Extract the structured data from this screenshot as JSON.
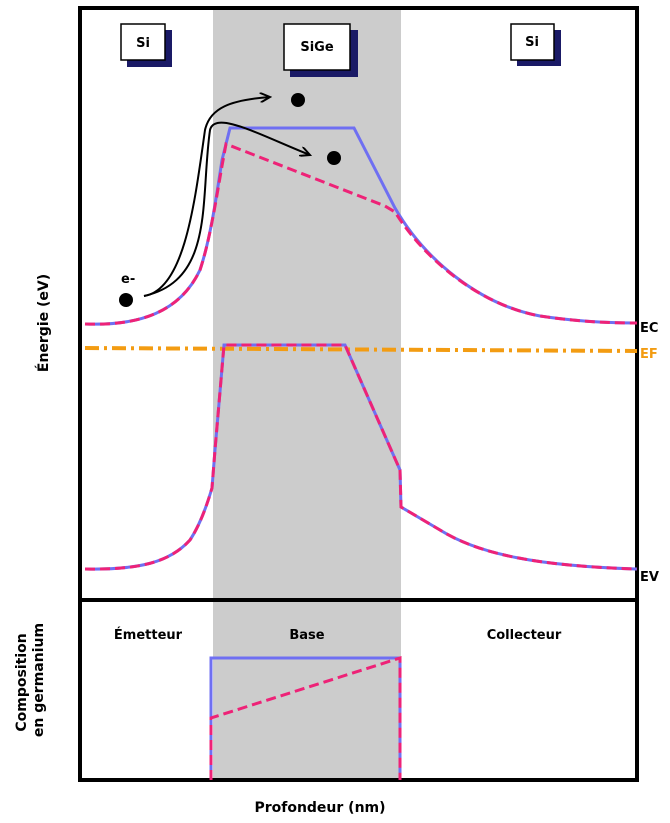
{
  "regions": {
    "left": "Si",
    "middle": "SiGe",
    "right": "Si"
  },
  "electron_label": "e-",
  "level_labels": {
    "conduction": "EC",
    "fermi": "EF",
    "valence": "EV"
  },
  "axis_labels": {
    "energy": "Énergie (eV)",
    "composition_line1": "Composition",
    "composition_line2": "en germanium",
    "depth": "Profondeur (nm)"
  },
  "zone_labels": {
    "emitter": "Émetteur",
    "base": "Base",
    "collector": "Collecteur"
  },
  "colors": {
    "band_highlight": "#cccccc",
    "uniform_profile": "#6f6ff2",
    "graded_profile": "#ee2277",
    "fermi_level": "#f39c12",
    "frame": "#000000",
    "label_box_shadow": "#1a1a66"
  }
}
